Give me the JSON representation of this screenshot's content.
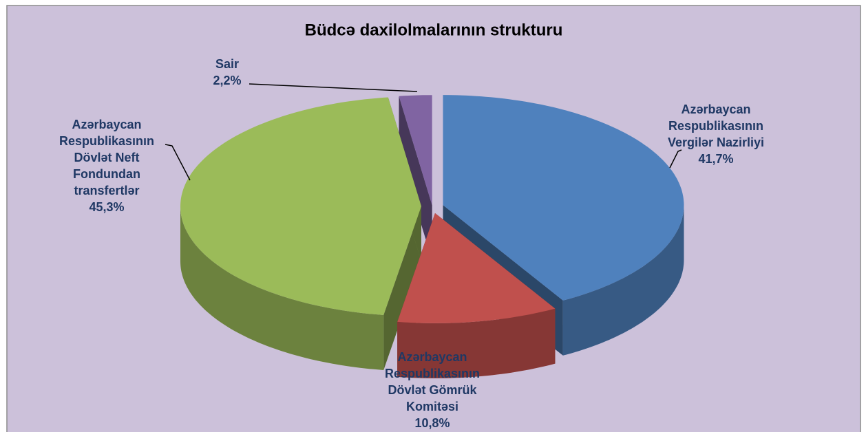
{
  "chart_data": {
    "type": "pie3d",
    "title": "Büdcə daxilolmalarının strukturu",
    "categories": [
      [
        "Azərbaycan",
        "Respublikasının",
        "Vergilər Nazirliyi"
      ],
      [
        "Azərbaycan",
        "Respublikasının",
        "Dövlət Gömrük",
        "Komitəsi"
      ],
      [
        "Azərbaycan",
        "Respublikasının",
        "Dövlət Neft",
        "Fondundan",
        "transfertlər"
      ],
      [
        "Sair"
      ]
    ],
    "values": [
      41.7,
      10.8,
      45.3,
      2.2
    ],
    "value_labels": [
      "41,7%",
      "10,8%",
      "45,3%",
      "2,2%"
    ],
    "colors": [
      "#4f81bd",
      "#c0504d",
      "#9bbb59",
      "#8064a2"
    ]
  }
}
